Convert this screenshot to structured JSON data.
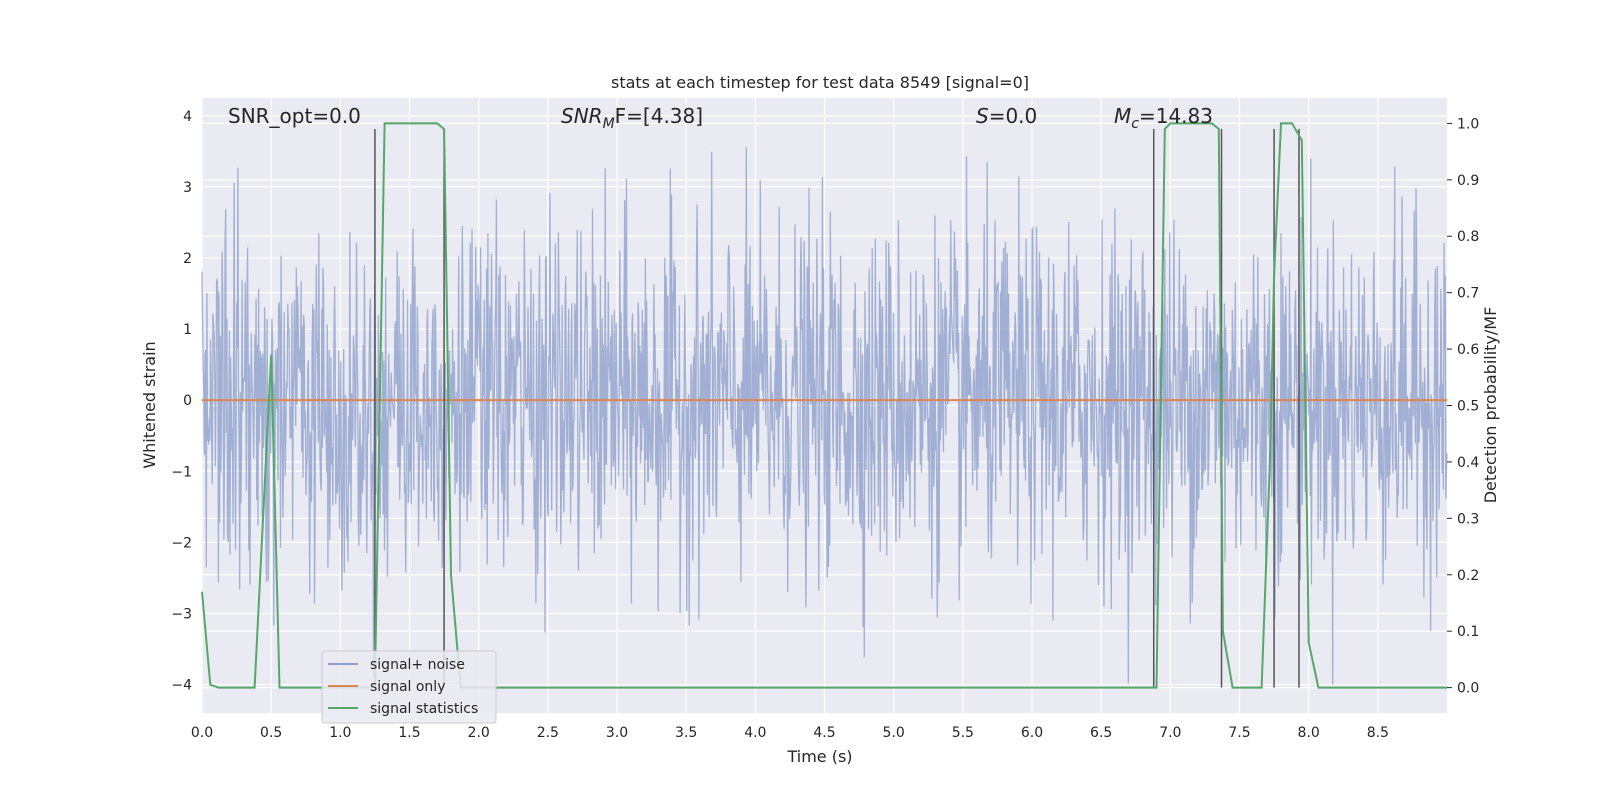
{
  "chart_data": {
    "type": "line",
    "title": "stats at each timestep for test data 8549 [signal=0]",
    "xlabel": "Time (s)",
    "ylabel": "Whitened strain",
    "ylabel_right": "Detection probability/MF",
    "xlim": [
      0,
      9.0
    ],
    "ylim": [
      -4.4,
      4.25
    ],
    "ylim_right": [
      -0.045,
      1.045
    ],
    "grid": true,
    "legend_position": "lower-left",
    "x_ticks": [
      0.0,
      0.5,
      1.0,
      1.5,
      2.0,
      2.5,
      3.0,
      3.5,
      4.0,
      4.5,
      5.0,
      5.5,
      6.0,
      6.5,
      7.0,
      7.5,
      8.0,
      8.5
    ],
    "x_tick_labels": [
      "0.0",
      "0.5",
      "1.0",
      "1.5",
      "2.0",
      "2.5",
      "3.0",
      "3.5",
      "4.0",
      "4.5",
      "5.0",
      "5.5",
      "6.0",
      "6.5",
      "7.0",
      "7.5",
      "8.0",
      "8.5"
    ],
    "y_ticks": [
      -4,
      -3,
      -2,
      -1,
      0,
      1,
      2,
      3,
      4
    ],
    "y_tick_labels": [
      "−4",
      "−3",
      "−2",
      "−1",
      "0",
      "1",
      "2",
      "3",
      "4"
    ],
    "y_ticks_right": [
      0.0,
      0.1,
      0.2,
      0.3,
      0.4,
      0.5,
      0.6,
      0.7,
      0.8,
      0.9,
      1.0
    ],
    "y_tick_labels_right": [
      "0.0",
      "0.1",
      "0.2",
      "0.3",
      "0.4",
      "0.5",
      "0.6",
      "0.7",
      "0.8",
      "0.9",
      "1.0"
    ],
    "annotations": {
      "snr_opt": "SNR_opt=0.0",
      "snr_mf_base": "SNR",
      "snr_mf_sub": "M",
      "snr_mf_tail": "F=[4.38]",
      "s_sym": "S",
      "s_val": "=0.0",
      "mc_sym": "M",
      "mc_sub": "c",
      "mc_val": "=14.83"
    },
    "series": [
      {
        "name": "signal+ noise",
        "color": "#8da0cb",
        "kind": "noise",
        "n_points": 2048,
        "std": 1.2,
        "range": [
          -4.0,
          3.7
        ]
      },
      {
        "name": "signal only",
        "color": "#dd8452",
        "x": [
          0.0,
          9.0
        ],
        "y": [
          0.0,
          0.0
        ]
      },
      {
        "name": "signal statistics",
        "color": "#55a868",
        "axis": "right",
        "x": [
          0.0,
          0.06,
          0.12,
          0.2,
          0.3,
          0.38,
          0.5,
          0.56,
          0.65,
          1.15,
          1.25,
          1.32,
          1.4,
          1.55,
          1.7,
          1.75,
          1.8,
          1.87,
          1.95,
          2.5,
          3.5,
          4.5,
          5.5,
          6.5,
          6.9,
          6.96,
          7.0,
          7.1,
          7.3,
          7.35,
          7.38,
          7.45,
          7.55,
          7.66,
          7.72,
          7.75,
          7.8,
          7.88,
          7.95,
          8.0,
          8.07,
          8.15,
          9.0
        ],
        "y": [
          0.17,
          0.005,
          0.0,
          0.0,
          0.0,
          0.0,
          0.59,
          0.0,
          0.0,
          0.0,
          0.0,
          1.0,
          1.0,
          1.0,
          1.0,
          0.99,
          0.2,
          0.0,
          0.0,
          0.0,
          0.0,
          0.0,
          0.0,
          0.0,
          0.0,
          0.99,
          1.0,
          1.0,
          1.0,
          0.99,
          0.1,
          0.0,
          0.0,
          0.0,
          0.4,
          0.73,
          1.0,
          1.0,
          0.97,
          0.08,
          0.0,
          0.0,
          0.0
        ]
      }
    ],
    "vertical_lines": [
      {
        "x": 1.25,
        "y0": 0.0,
        "y1": 0.99
      },
      {
        "x": 1.75,
        "y0": 0.0,
        "y1": 0.99
      },
      {
        "x": 6.88,
        "y0": 0.0,
        "y1": 0.99
      },
      {
        "x": 7.37,
        "y0": 0.0,
        "y1": 0.99
      },
      {
        "x": 7.75,
        "y0": 0.0,
        "y1": 0.99
      },
      {
        "x": 7.93,
        "y0": 0.0,
        "y1": 0.99
      }
    ],
    "colors": {
      "plot_background": "#eaeaf2",
      "grid": "#ffffff",
      "vline": "#555555",
      "text": "#262626"
    }
  }
}
